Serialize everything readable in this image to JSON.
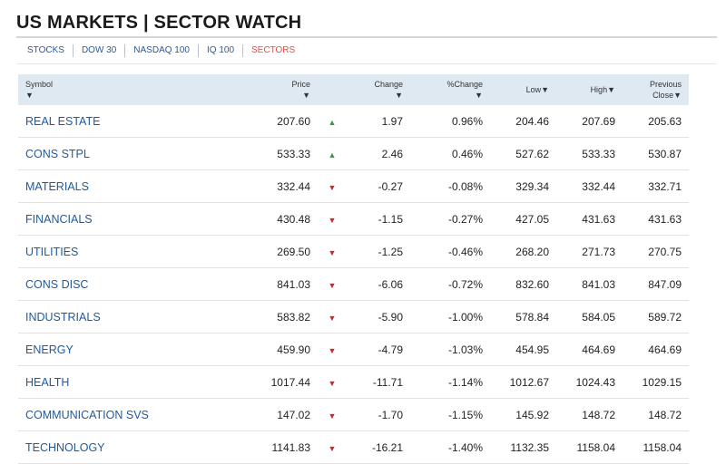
{
  "title": "US MARKETS | SECTOR WATCH",
  "tabs": [
    {
      "label": "STOCKS",
      "active": false
    },
    {
      "label": "DOW 30",
      "active": false
    },
    {
      "label": "NASDAQ 100",
      "active": false
    },
    {
      "label": "IQ 100",
      "active": false
    },
    {
      "label": "SECTORS",
      "active": true
    }
  ],
  "table": {
    "headers": {
      "symbol": "Symbol",
      "price": "Price",
      "change": "Change",
      "pct_change": "%Change",
      "low": "Low",
      "high": "High",
      "prev_close_line1": "Previous",
      "prev_close_line2": "Close"
    },
    "caret": "▼",
    "rows": [
      {
        "symbol": "REAL ESTATE",
        "price": "207.60",
        "dir": "up",
        "change": "1.97",
        "pct": "0.96%",
        "low": "204.46",
        "high": "207.69",
        "prev": "205.63"
      },
      {
        "symbol": "CONS STPL",
        "price": "533.33",
        "dir": "up",
        "change": "2.46",
        "pct": "0.46%",
        "low": "527.62",
        "high": "533.33",
        "prev": "530.87"
      },
      {
        "symbol": "MATERIALS",
        "price": "332.44",
        "dir": "down",
        "change": "-0.27",
        "pct": "-0.08%",
        "low": "329.34",
        "high": "332.44",
        "prev": "332.71"
      },
      {
        "symbol": "FINANCIALS",
        "price": "430.48",
        "dir": "down",
        "change": "-1.15",
        "pct": "-0.27%",
        "low": "427.05",
        "high": "431.63",
        "prev": "431.63"
      },
      {
        "symbol": "UTILITIES",
        "price": "269.50",
        "dir": "down",
        "change": "-1.25",
        "pct": "-0.46%",
        "low": "268.20",
        "high": "271.73",
        "prev": "270.75"
      },
      {
        "symbol": "CONS DISC",
        "price": "841.03",
        "dir": "down",
        "change": "-6.06",
        "pct": "-0.72%",
        "low": "832.60",
        "high": "841.03",
        "prev": "847.09"
      },
      {
        "symbol": "INDUSTRIALS",
        "price": "583.82",
        "dir": "down",
        "change": "-5.90",
        "pct": "-1.00%",
        "low": "578.84",
        "high": "584.05",
        "prev": "589.72"
      },
      {
        "symbol": "ENERGY",
        "price": "459.90",
        "dir": "down",
        "change": "-4.79",
        "pct": "-1.03%",
        "low": "454.95",
        "high": "464.69",
        "prev": "464.69"
      },
      {
        "symbol": "HEALTH",
        "price": "1017.44",
        "dir": "down",
        "change": "-11.71",
        "pct": "-1.14%",
        "low": "1012.67",
        "high": "1024.43",
        "prev": "1029.15"
      },
      {
        "symbol": "COMMUNICATION SVS",
        "price": "147.02",
        "dir": "down",
        "change": "-1.70",
        "pct": "-1.15%",
        "low": "145.92",
        "high": "148.72",
        "prev": "148.72"
      },
      {
        "symbol": "TECHNOLOGY",
        "price": "1141.83",
        "dir": "down",
        "change": "-16.21",
        "pct": "-1.40%",
        "low": "1132.35",
        "high": "1158.04",
        "prev": "1158.04"
      }
    ]
  },
  "colors": {
    "up": "#3a9a3f",
    "down": "#c9282d",
    "link": "#1f5a9c",
    "active_tab": "#d9534f"
  }
}
